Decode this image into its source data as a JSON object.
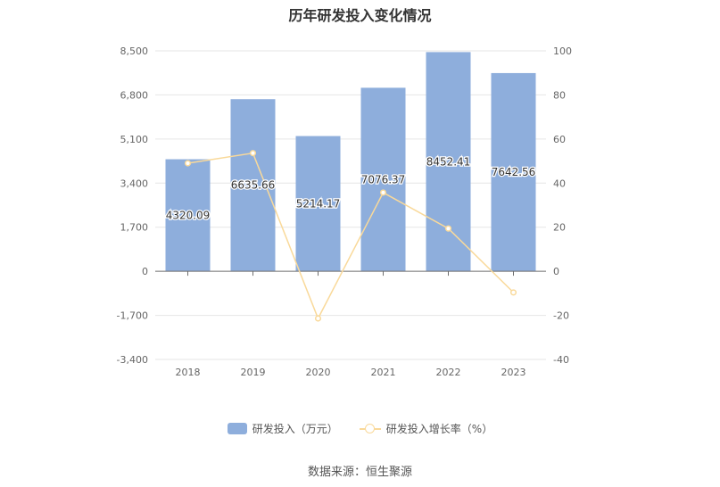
{
  "chart_data": {
    "type": "bar",
    "title": "历年研发投入变化情况",
    "categories": [
      "2018",
      "2019",
      "2020",
      "2021",
      "2022",
      "2023"
    ],
    "series": [
      {
        "name": "研发投入（万元）",
        "type": "bar",
        "axis": "left",
        "color": "#8eaedc",
        "values": [
          4320.09,
          6635.66,
          5214.17,
          7076.37,
          8452.41,
          7642.56
        ],
        "labels": [
          "4320.09",
          "6635.66",
          "5214.17",
          "7076.37",
          "8452.41",
          "7642.56"
        ]
      },
      {
        "name": "研发投入增长率（%）",
        "type": "line",
        "axis": "right",
        "color": "#f9d99a",
        "values": [
          49.0,
          53.6,
          -21.4,
          35.7,
          19.4,
          -9.6
        ]
      }
    ],
    "y_left": {
      "min": -3400,
      "max": 8500,
      "ticks": [
        8500,
        6800,
        5100,
        3400,
        1700,
        0,
        -1700,
        -3400
      ],
      "tick_labels": [
        "8,500",
        "6,800",
        "5,100",
        "3,400",
        "1,700",
        "0",
        "-1,700",
        "-3,400"
      ]
    },
    "y_right": {
      "min": -40,
      "max": 100,
      "ticks": [
        100,
        80,
        60,
        40,
        20,
        0,
        -20,
        -40
      ],
      "tick_labels": [
        "100",
        "80",
        "60",
        "40",
        "20",
        "0",
        "-20",
        "-40"
      ]
    },
    "grid": true,
    "legend_position": "bottom",
    "xlabel": "",
    "ylabel": ""
  },
  "legend": {
    "bar_label": "研发投入（万元）",
    "line_label": "研发投入增长率（%）",
    "bar_color": "#8eaedc",
    "line_color": "#f9d99a"
  },
  "source_text": "数据来源：恒生聚源"
}
